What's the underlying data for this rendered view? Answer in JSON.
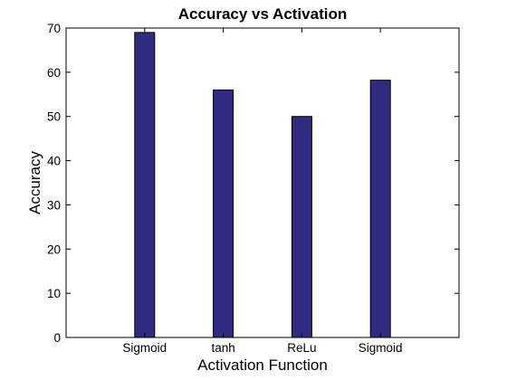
{
  "chart_data": {
    "type": "bar",
    "title": "Accuracy vs Activation",
    "xlabel": "Activation Function",
    "ylabel": "Accuracy",
    "categories": [
      "Sigmoid",
      "tanh",
      "ReLu",
      "Sigmoid"
    ],
    "values": [
      69,
      56,
      50,
      58.2
    ],
    "ylim": [
      0,
      70
    ],
    "yticks": [
      0,
      10,
      20,
      30,
      40,
      50,
      60,
      70
    ],
    "grid": false,
    "bar_color": "#302a80"
  }
}
